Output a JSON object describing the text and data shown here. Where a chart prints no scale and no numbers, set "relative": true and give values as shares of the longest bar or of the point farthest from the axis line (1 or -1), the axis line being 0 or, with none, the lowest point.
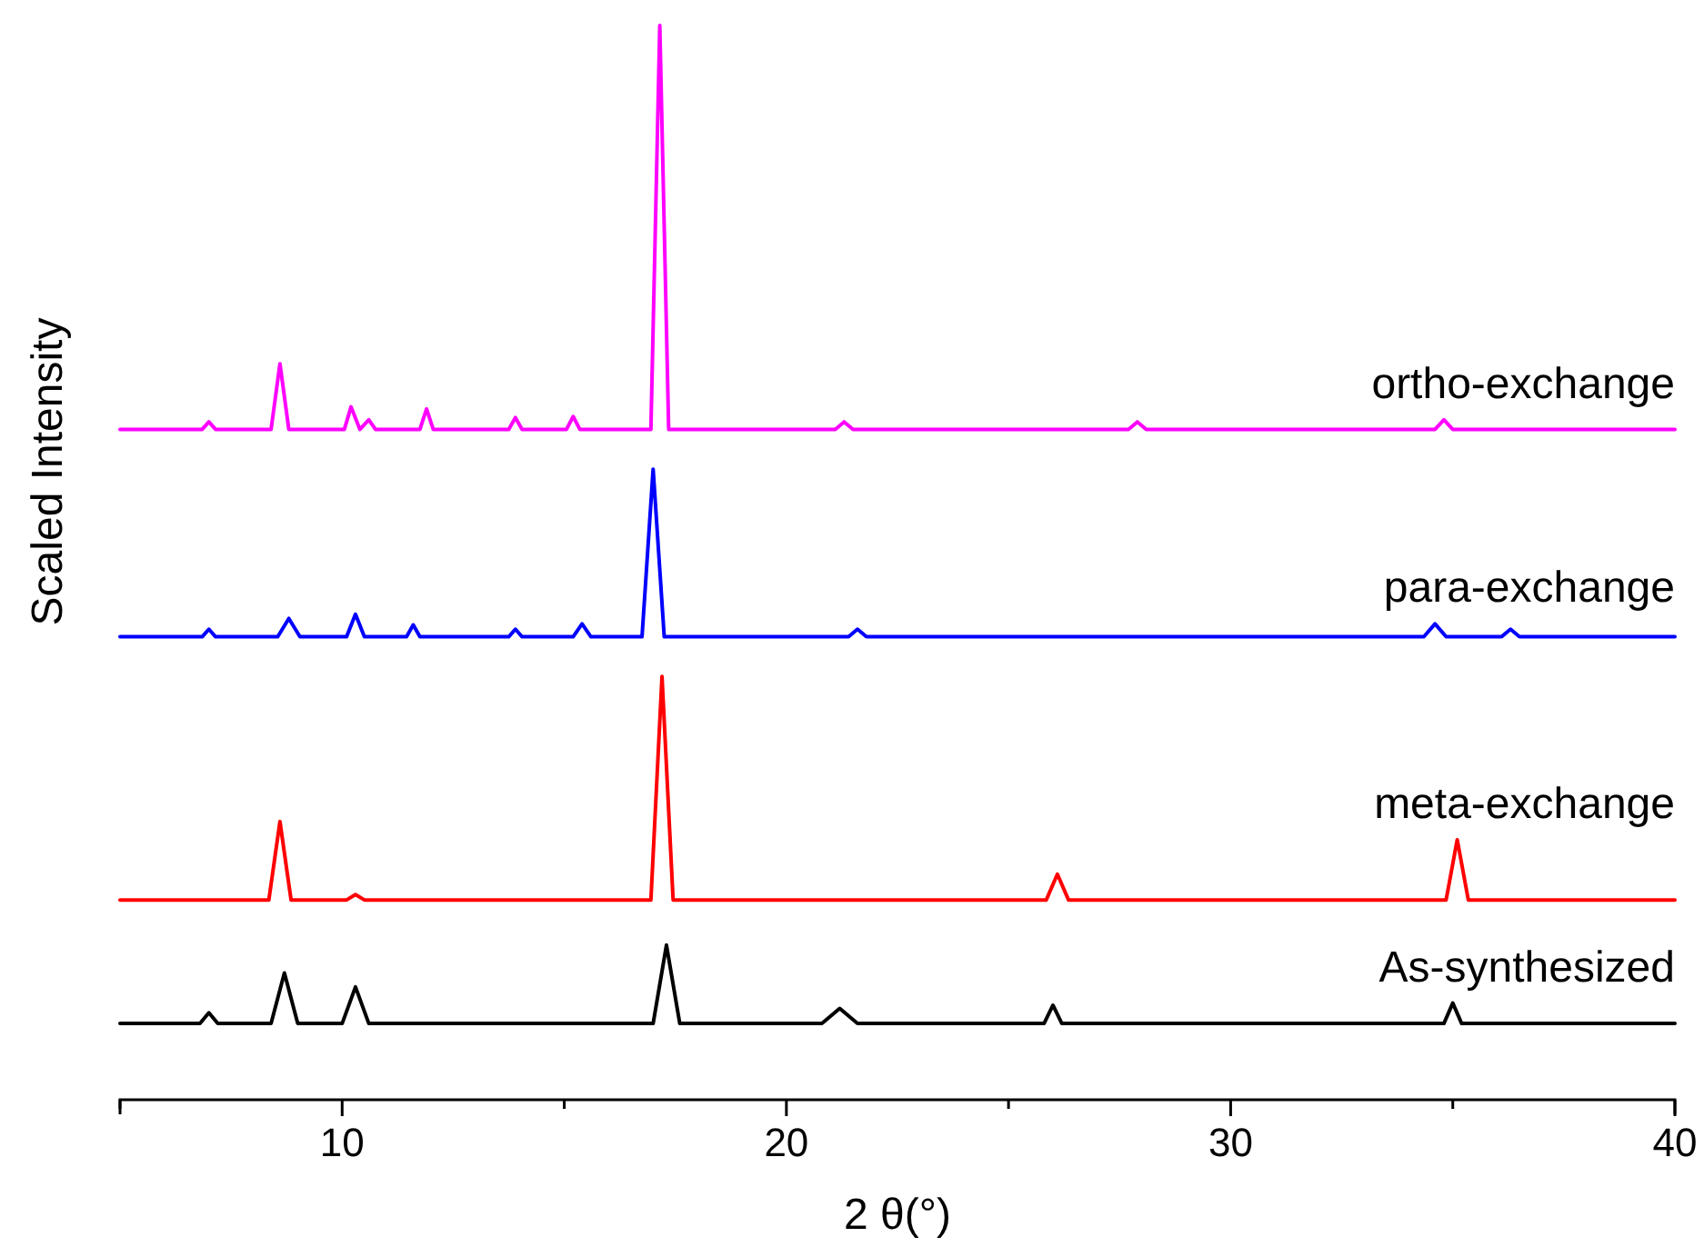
{
  "chart_data": {
    "type": "line",
    "relative": true,
    "xlabel": "2 θ(°)",
    "ylabel": "Scaled Intensity",
    "xlim": [
      5,
      40
    ],
    "xticks": [
      {
        "value": 5,
        "label": null
      },
      10,
      {
        "value": 15,
        "label": null
      },
      20,
      {
        "value": 25,
        "label": null
      },
      30,
      {
        "value": 35,
        "label": null
      },
      40
    ],
    "series": [
      {
        "name": "As-synthesized",
        "color": "#000000",
        "x": [
          5,
          6.8,
          7.0,
          7.2,
          8.4,
          8.7,
          9.0,
          10.0,
          10.3,
          10.6,
          17.0,
          17.3,
          17.6,
          20.8,
          21.2,
          21.6,
          25.8,
          26.0,
          26.2,
          34.8,
          35.0,
          35.2,
          40
        ],
        "values": [
          0.071,
          0.071,
          0.081,
          0.071,
          0.071,
          0.118,
          0.071,
          0.071,
          0.105,
          0.071,
          0.071,
          0.144,
          0.071,
          0.071,
          0.085,
          0.071,
          0.071,
          0.088,
          0.071,
          0.071,
          0.09,
          0.071,
          0.071
        ]
      },
      {
        "name": "meta-exchange",
        "color": "#ff0000",
        "x": [
          5,
          8.35,
          8.6,
          8.85,
          10.1,
          10.3,
          10.5,
          16.95,
          17.2,
          17.45,
          25.85,
          26.1,
          26.35,
          34.85,
          35.1,
          35.35,
          40
        ],
        "values": [
          0.186,
          0.186,
          0.259,
          0.186,
          0.186,
          0.191,
          0.186,
          0.186,
          0.394,
          0.186,
          0.186,
          0.21,
          0.186,
          0.186,
          0.242,
          0.186,
          0.186
        ]
      },
      {
        "name": "para-exchange",
        "color": "#0000ff",
        "x": [
          5,
          6.85,
          7.0,
          7.15,
          8.55,
          8.8,
          9.05,
          10.1,
          10.3,
          10.5,
          11.45,
          11.6,
          11.75,
          13.75,
          13.9,
          14.05,
          15.2,
          15.4,
          15.6,
          16.75,
          17.0,
          17.25,
          21.4,
          21.6,
          21.8,
          34.35,
          34.6,
          34.85,
          36.1,
          36.3,
          36.5,
          40
        ],
        "values": [
          0.431,
          0.431,
          0.438,
          0.431,
          0.431,
          0.448,
          0.431,
          0.431,
          0.452,
          0.431,
          0.431,
          0.442,
          0.431,
          0.431,
          0.438,
          0.431,
          0.431,
          0.443,
          0.431,
          0.431,
          0.587,
          0.431,
          0.431,
          0.438,
          0.431,
          0.431,
          0.443,
          0.431,
          0.431,
          0.438,
          0.431,
          0.431
        ]
      },
      {
        "name": "ortho-exchange",
        "color": "#ff00ff",
        "x": [
          5,
          6.85,
          7.0,
          7.15,
          8.4,
          8.6,
          8.8,
          10.05,
          10.2,
          10.4,
          10.6,
          10.75,
          11.75,
          11.9,
          12.05,
          13.75,
          13.9,
          14.05,
          15.05,
          15.2,
          15.35,
          16.95,
          17.15,
          17.35,
          21.1,
          21.3,
          21.5,
          27.7,
          27.9,
          28.1,
          34.6,
          34.8,
          35.0,
          40
        ],
        "values": [
          0.624,
          0.624,
          0.631,
          0.624,
          0.624,
          0.685,
          0.624,
          0.624,
          0.645,
          0.624,
          0.633,
          0.624,
          0.624,
          0.643,
          0.624,
          0.624,
          0.635,
          0.624,
          0.624,
          0.636,
          0.624,
          0.624,
          1.0,
          0.624,
          0.624,
          0.631,
          0.624,
          0.624,
          0.631,
          0.624,
          0.624,
          0.633,
          0.624,
          0.624
        ]
      }
    ]
  }
}
